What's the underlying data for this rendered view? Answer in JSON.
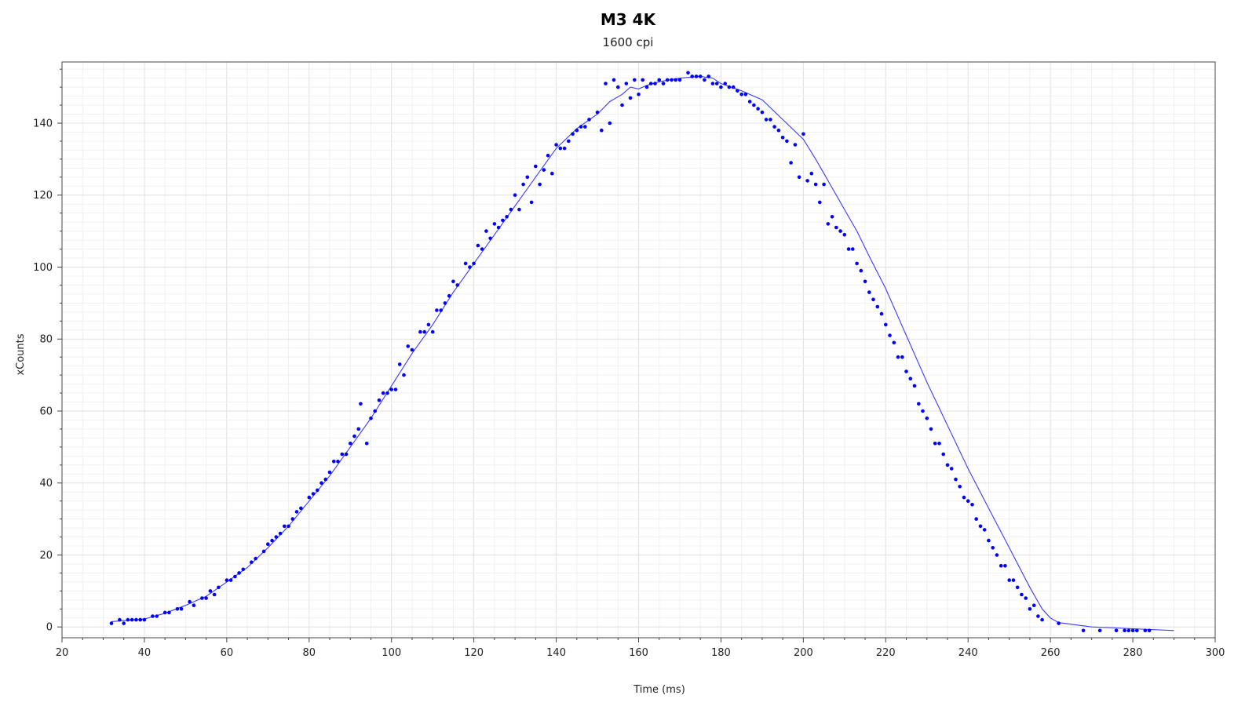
{
  "chart_data": {
    "type": "scatter",
    "title": "M3 4K",
    "subtitle": "1600 cpi",
    "xlabel": "Time (ms)",
    "ylabel": "xCounts",
    "xlim": [
      20,
      300
    ],
    "ylim": [
      -3,
      157
    ],
    "xticks": [
      20,
      40,
      60,
      80,
      100,
      120,
      140,
      160,
      180,
      200,
      220,
      240,
      260,
      280,
      300
    ],
    "yticks": [
      0,
      20,
      40,
      60,
      80,
      100,
      120,
      140
    ],
    "grid": true,
    "legend": "none",
    "colors": {
      "points": "#0000ff",
      "line": "#3a3aff",
      "grid_major": "#e0e0e0",
      "grid_minor": "#f0f0f0",
      "axis": "#444444"
    },
    "series": [
      {
        "kind": "scatter",
        "points": [
          [
            32,
            1
          ],
          [
            34,
            2
          ],
          [
            35,
            1
          ],
          [
            36,
            2
          ],
          [
            37,
            2
          ],
          [
            38,
            2
          ],
          [
            39,
            2
          ],
          [
            40,
            2
          ],
          [
            42,
            3
          ],
          [
            43,
            3
          ],
          [
            45,
            4
          ],
          [
            46,
            4
          ],
          [
            48,
            5
          ],
          [
            49,
            5
          ],
          [
            51,
            7
          ],
          [
            52,
            6
          ],
          [
            54,
            8
          ],
          [
            55,
            8
          ],
          [
            56,
            10
          ],
          [
            57,
            9
          ],
          [
            58,
            11
          ],
          [
            60,
            13
          ],
          [
            61,
            13
          ],
          [
            62,
            14
          ],
          [
            63,
            15
          ],
          [
            64,
            16
          ],
          [
            66,
            18
          ],
          [
            67,
            19
          ],
          [
            69,
            21
          ],
          [
            70,
            23
          ],
          [
            71,
            24
          ],
          [
            72,
            25
          ],
          [
            73,
            26
          ],
          [
            74,
            28
          ],
          [
            75,
            28
          ],
          [
            76,
            30
          ],
          [
            77,
            32
          ],
          [
            78,
            33
          ],
          [
            80,
            36
          ],
          [
            81,
            37
          ],
          [
            82,
            38
          ],
          [
            83,
            40
          ],
          [
            84,
            41
          ],
          [
            85,
            43
          ],
          [
            86,
            46
          ],
          [
            87,
            46
          ],
          [
            88,
            48
          ],
          [
            89,
            48
          ],
          [
            90,
            51
          ],
          [
            91,
            53
          ],
          [
            92,
            55
          ],
          [
            92.5,
            62
          ],
          [
            94,
            51
          ],
          [
            95,
            58
          ],
          [
            96,
            60
          ],
          [
            97,
            63
          ],
          [
            98,
            65
          ],
          [
            99,
            65
          ],
          [
            100,
            66
          ],
          [
            101,
            66
          ],
          [
            102,
            73
          ],
          [
            103,
            70
          ],
          [
            104,
            78
          ],
          [
            105,
            77
          ],
          [
            107,
            82
          ],
          [
            108,
            82
          ],
          [
            109,
            84
          ],
          [
            110,
            82
          ],
          [
            111,
            88
          ],
          [
            112,
            88
          ],
          [
            113,
            90
          ],
          [
            114,
            92
          ],
          [
            115,
            96
          ],
          [
            116,
            95
          ],
          [
            118,
            101
          ],
          [
            119,
            100
          ],
          [
            120,
            101
          ],
          [
            121,
            106
          ],
          [
            122,
            105
          ],
          [
            123,
            110
          ],
          [
            124,
            108
          ],
          [
            125,
            112
          ],
          [
            126,
            111
          ],
          [
            127,
            113
          ],
          [
            128,
            114
          ],
          [
            129,
            116
          ],
          [
            130,
            120
          ],
          [
            131,
            116
          ],
          [
            132,
            123
          ],
          [
            133,
            125
          ],
          [
            134,
            118
          ],
          [
            135,
            128
          ],
          [
            136,
            123
          ],
          [
            137,
            127
          ],
          [
            138,
            131
          ],
          [
            139,
            126
          ],
          [
            140,
            134
          ],
          [
            141,
            133
          ],
          [
            142,
            133
          ],
          [
            143,
            135
          ],
          [
            144,
            137
          ],
          [
            145,
            138
          ],
          [
            146,
            139
          ],
          [
            147,
            139
          ],
          [
            148,
            141
          ],
          [
            150,
            143
          ],
          [
            151,
            138
          ],
          [
            152,
            151
          ],
          [
            153,
            140
          ],
          [
            154,
            152
          ],
          [
            155,
            150
          ],
          [
            156,
            145
          ],
          [
            157,
            151
          ],
          [
            158,
            147
          ],
          [
            159,
            152
          ],
          [
            160,
            148
          ],
          [
            161,
            152
          ],
          [
            162,
            150
          ],
          [
            163,
            151
          ],
          [
            164,
            151
          ],
          [
            165,
            152
          ],
          [
            166,
            151
          ],
          [
            167,
            152
          ],
          [
            168,
            152
          ],
          [
            169,
            152
          ],
          [
            170,
            152
          ],
          [
            172,
            154
          ],
          [
            173,
            153
          ],
          [
            174,
            153
          ],
          [
            175,
            153
          ],
          [
            176,
            152
          ],
          [
            177,
            153
          ],
          [
            178,
            151
          ],
          [
            179,
            151
          ],
          [
            180,
            150
          ],
          [
            181,
            151
          ],
          [
            182,
            150
          ],
          [
            183,
            150
          ],
          [
            184,
            149
          ],
          [
            185,
            148
          ],
          [
            186,
            148
          ],
          [
            187,
            146
          ],
          [
            188,
            145
          ],
          [
            189,
            144
          ],
          [
            190,
            143
          ],
          [
            191,
            141
          ],
          [
            192,
            141
          ],
          [
            193,
            139
          ],
          [
            194,
            138
          ],
          [
            195,
            136
          ],
          [
            196,
            135
          ],
          [
            197,
            129
          ],
          [
            198,
            134
          ],
          [
            199,
            125
          ],
          [
            200,
            137
          ],
          [
            201,
            124
          ],
          [
            202,
            126
          ],
          [
            203,
            123
          ],
          [
            204,
            118
          ],
          [
            205,
            123
          ],
          [
            206,
            112
          ],
          [
            207,
            114
          ],
          [
            208,
            111
          ],
          [
            209,
            110
          ],
          [
            210,
            109
          ],
          [
            211,
            105
          ],
          [
            212,
            105
          ],
          [
            213,
            101
          ],
          [
            214,
            99
          ],
          [
            215,
            96
          ],
          [
            216,
            93
          ],
          [
            217,
            91
          ],
          [
            218,
            89
          ],
          [
            219,
            87
          ],
          [
            220,
            84
          ],
          [
            221,
            81
          ],
          [
            222,
            79
          ],
          [
            223,
            75
          ],
          [
            224,
            75
          ],
          [
            225,
            71
          ],
          [
            226,
            69
          ],
          [
            227,
            67
          ],
          [
            228,
            62
          ],
          [
            229,
            60
          ],
          [
            230,
            58
          ],
          [
            231,
            55
          ],
          [
            232,
            51
          ],
          [
            233,
            51
          ],
          [
            234,
            48
          ],
          [
            235,
            45
          ],
          [
            236,
            44
          ],
          [
            237,
            41
          ],
          [
            238,
            39
          ],
          [
            239,
            36
          ],
          [
            240,
            35
          ],
          [
            241,
            34
          ],
          [
            242,
            30
          ],
          [
            243,
            28
          ],
          [
            244,
            27
          ],
          [
            245,
            24
          ],
          [
            246,
            22
          ],
          [
            247,
            20
          ],
          [
            248,
            17
          ],
          [
            249,
            17
          ],
          [
            250,
            13
          ],
          [
            251,
            13
          ],
          [
            252,
            11
          ],
          [
            253,
            9
          ],
          [
            254,
            8
          ],
          [
            255,
            5
          ],
          [
            256,
            6
          ],
          [
            257,
            3
          ],
          [
            258,
            2
          ],
          [
            262,
            1
          ],
          [
            268,
            -1
          ],
          [
            272,
            -1
          ],
          [
            276,
            -1
          ],
          [
            278,
            -1
          ],
          [
            279,
            -1
          ],
          [
            280,
            -1
          ],
          [
            281,
            -1
          ],
          [
            283,
            -1
          ],
          [
            284,
            -1
          ]
        ]
      },
      {
        "kind": "line",
        "points": [
          [
            32,
            1.5
          ],
          [
            40,
            2.2
          ],
          [
            45,
            3.8
          ],
          [
            50,
            6
          ],
          [
            55,
            8.5
          ],
          [
            60,
            12.5
          ],
          [
            65,
            16.5
          ],
          [
            70,
            22
          ],
          [
            75,
            28
          ],
          [
            80,
            35
          ],
          [
            85,
            42
          ],
          [
            90,
            50
          ],
          [
            95,
            58
          ],
          [
            100,
            67
          ],
          [
            105,
            76
          ],
          [
            110,
            84
          ],
          [
            115,
            93
          ],
          [
            120,
            101
          ],
          [
            125,
            109
          ],
          [
            130,
            117
          ],
          [
            135,
            125
          ],
          [
            140,
            133
          ],
          [
            145,
            138.5
          ],
          [
            150,
            142.5
          ],
          [
            153,
            146
          ],
          [
            156,
            148
          ],
          [
            158,
            150
          ],
          [
            160,
            149.5
          ],
          [
            162,
            150.5
          ],
          [
            165,
            151.5
          ],
          [
            170,
            152.5
          ],
          [
            175,
            153
          ],
          [
            178,
            152.5
          ],
          [
            180,
            151
          ],
          [
            185,
            149
          ],
          [
            190,
            146.5
          ],
          [
            195,
            141
          ],
          [
            200,
            135.5
          ],
          [
            203,
            130
          ],
          [
            205,
            126
          ],
          [
            207,
            122
          ],
          [
            210,
            116
          ],
          [
            213,
            110
          ],
          [
            216,
            103
          ],
          [
            220,
            94
          ],
          [
            225,
            81
          ],
          [
            230,
            68
          ],
          [
            235,
            56
          ],
          [
            240,
            44
          ],
          [
            245,
            33
          ],
          [
            250,
            22
          ],
          [
            255,
            11
          ],
          [
            258,
            5
          ],
          [
            260,
            2.5
          ],
          [
            262,
            1.2
          ],
          [
            270,
            0
          ],
          [
            280,
            -0.5
          ],
          [
            290,
            -1
          ]
        ]
      }
    ]
  }
}
